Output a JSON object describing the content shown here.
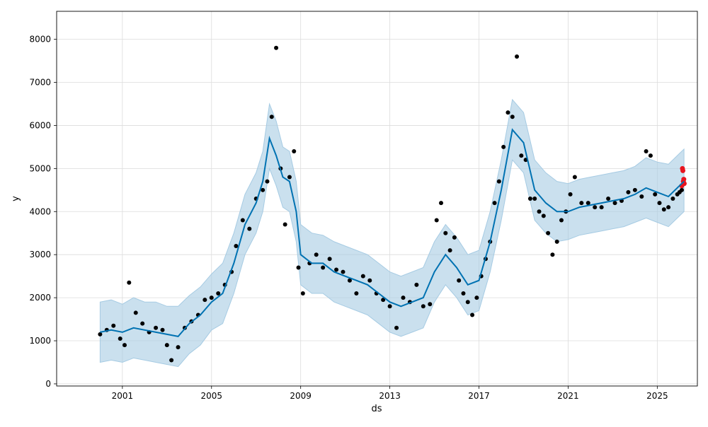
{
  "chart_data": {
    "type": "scatter",
    "title": "",
    "xlabel": "ds",
    "ylabel": "y",
    "x_ticks": [
      "2001",
      "2005",
      "2009",
      "2013",
      "2017",
      "2021",
      "2025"
    ],
    "y_ticks": [
      "0",
      "1000",
      "2000",
      "3000",
      "4000",
      "5000",
      "6000",
      "7000",
      "8000"
    ],
    "x_range": [
      1998.05,
      2026.8
    ],
    "y_range": [
      -50,
      8650
    ],
    "grid": true,
    "legend": "none",
    "colors": {
      "observed": "#000000",
      "recent": "#e8141e",
      "forecast": "#0072b2",
      "interval": "#a6cbe3"
    },
    "series": [
      {
        "role": "observed",
        "x": [
          2000.0,
          2000.3,
          2000.6,
          2000.9,
          2001.1,
          2001.3,
          2001.6,
          2001.9,
          2002.2,
          2002.5,
          2002.8,
          2003.0,
          2003.2,
          2003.5,
          2003.8,
          2004.1,
          2004.4,
          2004.7,
          2005.0,
          2005.3,
          2005.6,
          2005.9,
          2006.1,
          2006.4,
          2006.7,
          2007.0,
          2007.3,
          2007.5,
          2007.7,
          2007.9,
          2008.1,
          2008.3,
          2008.5,
          2008.7,
          2008.9,
          2009.1,
          2009.4,
          2009.7,
          2010.0,
          2010.3,
          2010.6,
          2010.9,
          2011.2,
          2011.5,
          2011.8,
          2012.1,
          2012.4,
          2012.7,
          2013.0,
          2013.3,
          2013.6,
          2013.9,
          2014.2,
          2014.5,
          2014.8,
          2015.1,
          2015.3,
          2015.5,
          2015.7,
          2015.9,
          2016.1,
          2016.3,
          2016.5,
          2016.7,
          2016.9,
          2017.1,
          2017.3,
          2017.5,
          2017.7,
          2017.9,
          2018.1,
          2018.3,
          2018.5,
          2018.7,
          2018.9,
          2019.1,
          2019.3,
          2019.5,
          2019.7,
          2019.9,
          2020.1,
          2020.3,
          2020.5,
          2020.7,
          2020.9,
          2021.1,
          2021.3,
          2021.6,
          2021.9,
          2022.2,
          2022.5,
          2022.8,
          2023.1,
          2023.4,
          2023.7,
          2024.0,
          2024.3,
          2024.5,
          2024.7,
          2024.9,
          2025.1,
          2025.3,
          2025.5,
          2025.7,
          2025.9,
          2026.0,
          2026.1
        ],
        "y": [
          1150,
          1250,
          1350,
          1050,
          900,
          2350,
          1650,
          1400,
          1200,
          1300,
          1250,
          900,
          550,
          850,
          1300,
          1450,
          1600,
          1950,
          2000,
          2100,
          2300,
          2600,
          3200,
          3800,
          3600,
          4300,
          4500,
          4700,
          6200,
          7800,
          5000,
          3700,
          4800,
          5400,
          2700,
          2100,
          2800,
          3000,
          2700,
          2900,
          2650,
          2600,
          2400,
          2100,
          2500,
          2400,
          2100,
          1950,
          1800,
          1300,
          2000,
          1900,
          2300,
          1800,
          1850,
          3800,
          4200,
          3500,
          3100,
          3400,
          2400,
          2100,
          1900,
          1600,
          2000,
          2500,
          2900,
          3300,
          4200,
          4700,
          5500,
          6300,
          6200,
          7600,
          5300,
          5200,
          4300,
          4300,
          4000,
          3900,
          3500,
          3000,
          3300,
          3800,
          4000,
          4400,
          4800,
          4200,
          4200,
          4100,
          4100,
          4300,
          4200,
          4250,
          4450,
          4500,
          4350,
          5400,
          5300,
          4400,
          4200,
          4050,
          4100,
          4300,
          4400,
          4450,
          4500
        ]
      },
      {
        "role": "recent",
        "x": [
          2026.1,
          2026.13,
          2026.15,
          2026.17,
          2026.19,
          2026.21
        ],
        "y": [
          4600,
          5000,
          4950,
          4700,
          4750,
          4650
        ]
      },
      {
        "role": "forecast",
        "x": [
          2000.0,
          2000.5,
          2001.0,
          2001.5,
          2002.0,
          2002.5,
          2003.0,
          2003.5,
          2004.0,
          2004.5,
          2005.0,
          2005.5,
          2006.0,
          2006.5,
          2007.0,
          2007.3,
          2007.6,
          2007.9,
          2008.2,
          2008.5,
          2008.8,
          2009.0,
          2009.5,
          2010.0,
          2010.5,
          2011.0,
          2011.5,
          2012.0,
          2012.5,
          2013.0,
          2013.5,
          2014.0,
          2014.5,
          2015.0,
          2015.5,
          2016.0,
          2016.5,
          2017.0,
          2017.5,
          2018.0,
          2018.5,
          2019.0,
          2019.5,
          2020.0,
          2020.5,
          2021.0,
          2021.5,
          2022.0,
          2022.5,
          2023.0,
          2023.5,
          2024.0,
          2024.5,
          2025.0,
          2025.5,
          2026.0,
          2026.2
        ],
        "y": [
          1200,
          1250,
          1200,
          1300,
          1250,
          1200,
          1150,
          1100,
          1400,
          1600,
          1900,
          2100,
          2800,
          3700,
          4200,
          4700,
          5700,
          5300,
          4800,
          4700,
          4000,
          3000,
          2800,
          2800,
          2600,
          2500,
          2400,
          2300,
          2100,
          1900,
          1800,
          1900,
          2000,
          2600,
          3000,
          2700,
          2300,
          2400,
          3300,
          4500,
          5900,
          5600,
          4500,
          4200,
          4000,
          4000,
          4100,
          4150,
          4200,
          4250,
          4300,
          4400,
          4550,
          4450,
          4350,
          4600,
          4700
        ]
      },
      {
        "role": "interval",
        "x": [
          2000.0,
          2000.5,
          2001.0,
          2001.5,
          2002.0,
          2002.5,
          2003.0,
          2003.5,
          2004.0,
          2004.5,
          2005.0,
          2005.5,
          2006.0,
          2006.5,
          2007.0,
          2007.3,
          2007.6,
          2007.9,
          2008.2,
          2008.5,
          2008.8,
          2009.0,
          2009.5,
          2010.0,
          2010.5,
          2011.0,
          2011.5,
          2012.0,
          2012.5,
          2013.0,
          2013.5,
          2014.0,
          2014.5,
          2015.0,
          2015.5,
          2016.0,
          2016.5,
          2017.0,
          2017.5,
          2018.0,
          2018.5,
          2019.0,
          2019.5,
          2020.0,
          2020.5,
          2021.0,
          2021.5,
          2022.0,
          2022.5,
          2023.0,
          2023.5,
          2024.0,
          2024.5,
          2025.0,
          2025.5,
          2026.0,
          2026.2
        ],
        "upper": [
          1900,
          1950,
          1850,
          2000,
          1900,
          1900,
          1800,
          1800,
          2050,
          2250,
          2550,
          2800,
          3500,
          4400,
          4900,
          5400,
          6500,
          6100,
          5500,
          5400,
          4700,
          3700,
          3500,
          3450,
          3300,
          3200,
          3100,
          3000,
          2800,
          2600,
          2500,
          2600,
          2700,
          3300,
          3700,
          3400,
          3000,
          3100,
          4000,
          5200,
          6600,
          6300,
          5200,
          4900,
          4700,
          4650,
          4750,
          4800,
          4850,
          4900,
          4950,
          5050,
          5250,
          5150,
          5100,
          5350,
          5450
        ],
        "lower": [
          500,
          550,
          500,
          600,
          550,
          500,
          450,
          400,
          700,
          900,
          1250,
          1400,
          2100,
          3000,
          3500,
          4000,
          5000,
          4600,
          4100,
          4000,
          3300,
          2300,
          2100,
          2100,
          1900,
          1800,
          1700,
          1600,
          1400,
          1200,
          1100,
          1200,
          1300,
          1900,
          2300,
          2000,
          1600,
          1700,
          2600,
          3800,
          5200,
          4900,
          3800,
          3500,
          3300,
          3350,
          3450,
          3500,
          3550,
          3600,
          3650,
          3750,
          3850,
          3750,
          3650,
          3900,
          4000
        ]
      }
    ]
  }
}
